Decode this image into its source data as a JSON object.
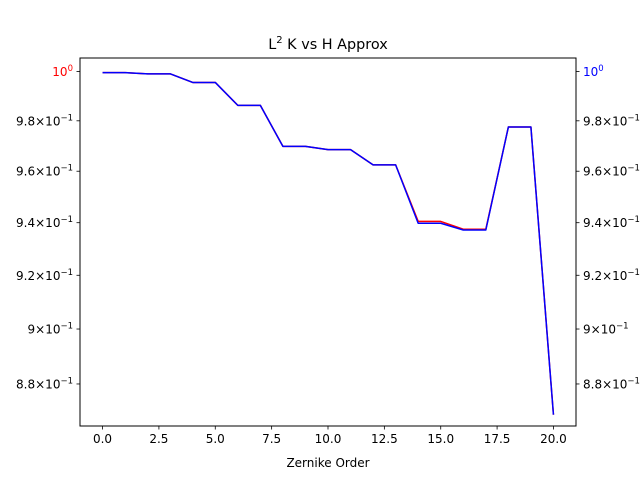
{
  "chart_data": {
    "type": "line",
    "title_main": "L",
    "title_sup": "2",
    "title_rest": " K vs H Approx",
    "xlabel": "Zernike Order",
    "xlim": [
      -1,
      21
    ],
    "ylim": [
      0.865,
      1.0055
    ],
    "yscale": "log",
    "grid": false,
    "x_ticks": [
      "0.0",
      "2.5",
      "5.0",
      "7.5",
      "10.0",
      "12.5",
      "15.0",
      "17.5",
      "20.0"
    ],
    "y_ticks": [
      {
        "value": 1.0,
        "mant": "",
        "exp": "0",
        "color": "#ff0000"
      },
      {
        "value": 0.98,
        "mant": "9.8×10",
        "exp": "−1",
        "color": "#000000"
      },
      {
        "value": 0.96,
        "mant": "9.6×10",
        "exp": "−1",
        "color": "#000000"
      },
      {
        "value": 0.94,
        "mant": "9.4×10",
        "exp": "−1",
        "color": "#000000"
      },
      {
        "value": 0.92,
        "mant": "9.2×10",
        "exp": "−1",
        "color": "#000000"
      },
      {
        "value": 0.9,
        "mant": "9×10",
        "exp": "−1",
        "color": "#000000"
      },
      {
        "value": 0.88,
        "mant": "8.8×10",
        "exp": "−1",
        "color": "#000000"
      }
    ],
    "y2_ticks": [
      {
        "value": 1.0,
        "mant": "",
        "exp": "0",
        "color": "#0000ff"
      },
      {
        "value": 0.98,
        "mant": "9.8×10",
        "exp": "−1",
        "color": "#000000"
      },
      {
        "value": 0.96,
        "mant": "9.6×10",
        "exp": "−1",
        "color": "#000000"
      },
      {
        "value": 0.94,
        "mant": "9.4×10",
        "exp": "−1",
        "color": "#000000"
      },
      {
        "value": 0.92,
        "mant": "9.2×10",
        "exp": "−1",
        "color": "#000000"
      },
      {
        "value": 0.9,
        "mant": "9×10",
        "exp": "−1",
        "color": "#000000"
      },
      {
        "value": 0.88,
        "mant": "8.8×10",
        "exp": "−1",
        "color": "#000000"
      }
    ],
    "x": [
      0,
      1,
      2,
      3,
      4,
      5,
      6,
      7,
      8,
      9,
      10,
      11,
      12,
      13,
      14,
      15,
      16,
      17,
      18,
      19,
      20
    ],
    "series": [
      {
        "color": "#ff0000",
        "axis": "left",
        "values": [
          0.9995,
          0.9995,
          0.999,
          0.999,
          0.9955,
          0.9955,
          0.9862,
          0.9862,
          0.9698,
          0.9698,
          0.9685,
          0.9685,
          0.9625,
          0.9625,
          0.9405,
          0.9405,
          0.9375,
          0.9375,
          0.9775,
          0.9775,
          0.869
        ]
      },
      {
        "color": "#0000ff",
        "axis": "right",
        "values": [
          0.9995,
          0.9995,
          0.999,
          0.999,
          0.9955,
          0.9955,
          0.9862,
          0.9862,
          0.9698,
          0.9698,
          0.9685,
          0.9685,
          0.9625,
          0.9625,
          0.9398,
          0.9398,
          0.9372,
          0.9372,
          0.9775,
          0.9775,
          0.869
        ]
      }
    ]
  }
}
